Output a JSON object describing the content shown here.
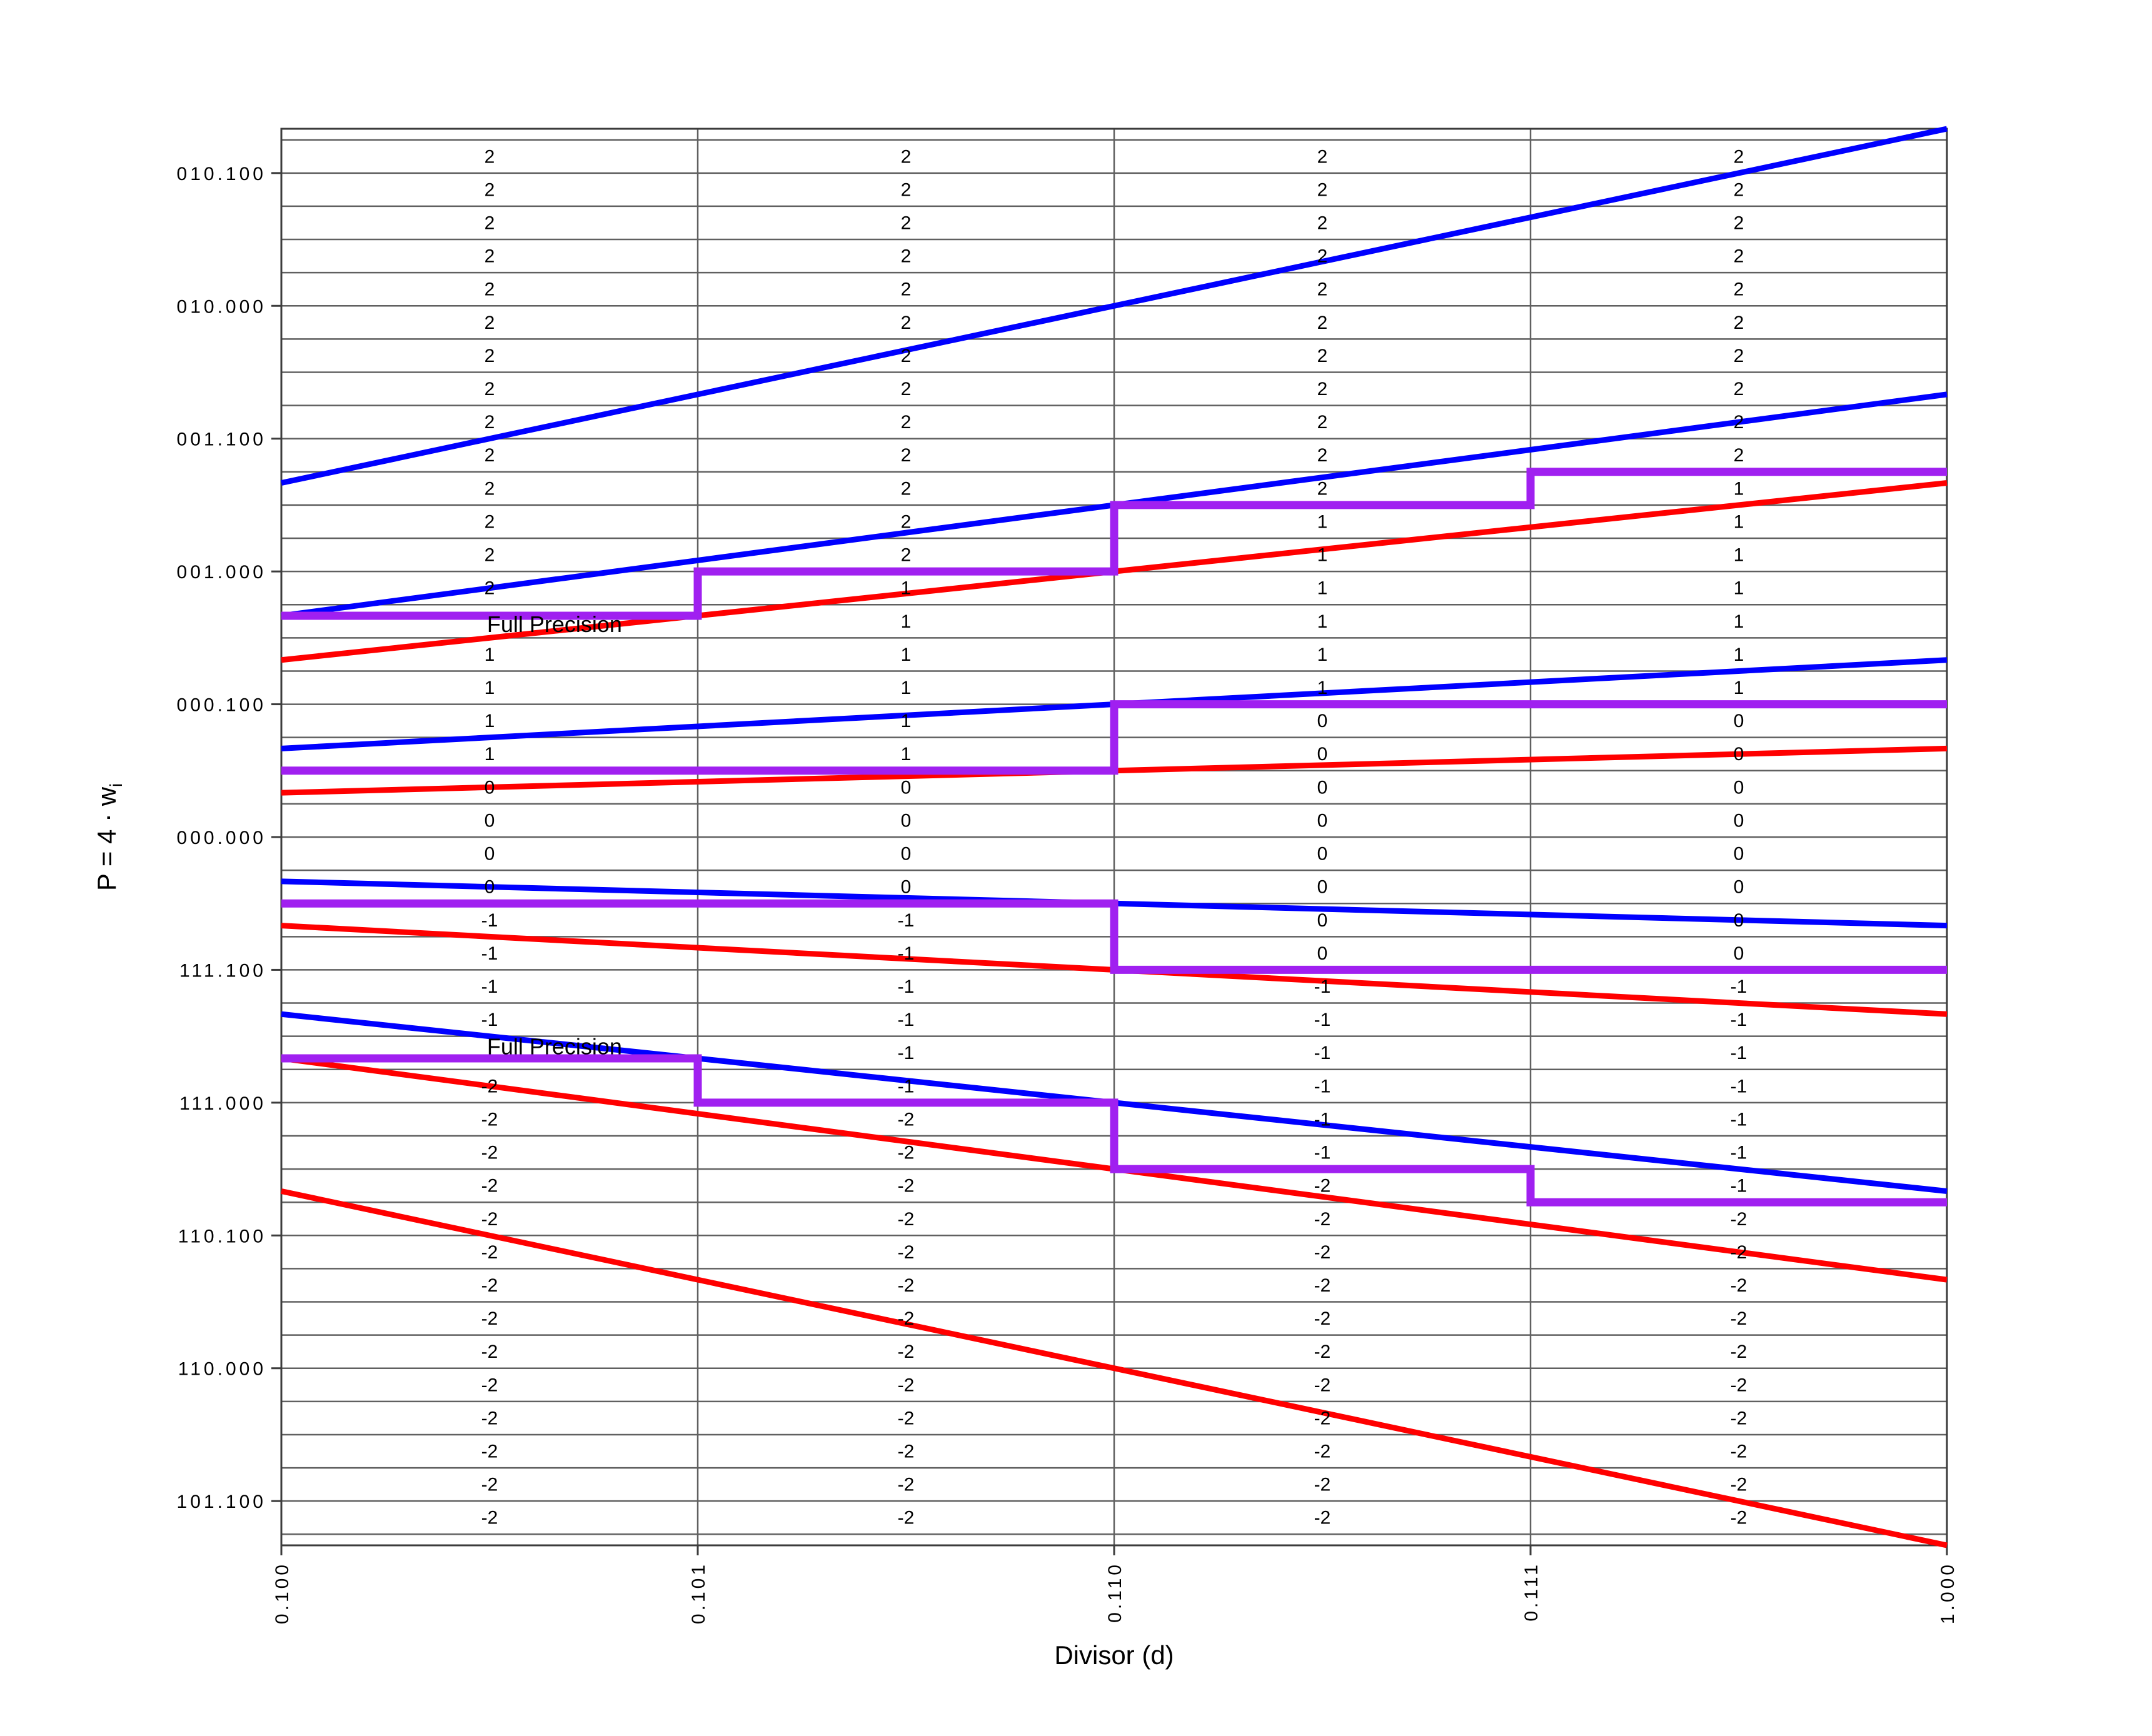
{
  "chart_data": {
    "type": "line",
    "title": "",
    "xlabel": "Divisor (d)",
    "ylabel": "P = 4 · w_i",
    "ylabel_main": "P = 4 · w",
    "ylabel_sub": "i",
    "xlim": [
      0.5,
      1.0
    ],
    "ylim": [
      -2.6667,
      2.6667
    ],
    "grid": {
      "y_min": -2.625,
      "y_max": 2.625,
      "y_step": 0.125,
      "x_lines": [
        0.625,
        0.75,
        0.875
      ]
    },
    "x_ticks": [
      {
        "value": 0.5,
        "label": "0.100"
      },
      {
        "value": 0.625,
        "label": "0.101"
      },
      {
        "value": 0.75,
        "label": "0.110"
      },
      {
        "value": 0.875,
        "label": "0.111"
      },
      {
        "value": 1.0,
        "label": "1.000"
      }
    ],
    "y_ticks": [
      {
        "value": 2.5,
        "label": "010.100"
      },
      {
        "value": 2.0,
        "label": "010.000"
      },
      {
        "value": 1.5,
        "label": "001.100"
      },
      {
        "value": 1.0,
        "label": "001.000"
      },
      {
        "value": 0.5,
        "label": "000.100"
      },
      {
        "value": 0.0,
        "label": "000.000"
      },
      {
        "value": -0.5,
        "label": "111.100"
      },
      {
        "value": -1.0,
        "label": "111.000"
      },
      {
        "value": -1.5,
        "label": "110.100"
      },
      {
        "value": -2.0,
        "label": "110.000"
      },
      {
        "value": -2.5,
        "label": "101.100"
      }
    ],
    "upper_bound_lines_blue": [
      {
        "digit": 2,
        "y_at_xmin": 1.3333,
        "y_at_xmax": 2.6667
      },
      {
        "digit": 1,
        "y_at_xmin": 0.8333,
        "y_at_xmax": 1.6667
      },
      {
        "digit": 0,
        "y_at_xmin": 0.3333,
        "y_at_xmax": 0.6667
      },
      {
        "digit": -1,
        "y_at_xmin": -0.1667,
        "y_at_xmax": -0.3333
      },
      {
        "digit": -2,
        "y_at_xmin": -0.6667,
        "y_at_xmax": -1.3333
      }
    ],
    "lower_bound_lines_red": [
      {
        "digit": 2,
        "y_at_xmin": 0.6667,
        "y_at_xmax": 1.3333
      },
      {
        "digit": 1,
        "y_at_xmin": 0.1667,
        "y_at_xmax": 0.3333
      },
      {
        "digit": 0,
        "y_at_xmin": -0.3333,
        "y_at_xmax": -0.6667
      },
      {
        "digit": -1,
        "y_at_xmin": -0.8333,
        "y_at_xmax": -1.6667
      },
      {
        "digit": -2,
        "y_at_xmin": -1.3333,
        "y_at_xmax": -2.6667
      }
    ],
    "staircase_boundaries_purple": [
      {
        "boundary": "2|1",
        "points": [
          [
            0.5,
            0.8333
          ],
          [
            0.625,
            0.8333
          ],
          [
            0.625,
            1.0
          ],
          [
            0.75,
            1.0
          ],
          [
            0.75,
            1.25
          ],
          [
            0.875,
            1.25
          ],
          [
            0.875,
            1.375
          ],
          [
            1.0,
            1.375
          ]
        ]
      },
      {
        "boundary": "1|0",
        "points": [
          [
            0.5,
            0.25
          ],
          [
            0.75,
            0.25
          ],
          [
            0.75,
            0.5
          ],
          [
            1.0,
            0.5
          ]
        ]
      },
      {
        "boundary": "0|-1",
        "points": [
          [
            0.5,
            -0.25
          ],
          [
            0.75,
            -0.25
          ],
          [
            0.75,
            -0.5
          ],
          [
            1.0,
            -0.5
          ]
        ]
      },
      {
        "boundary": "-1|-2",
        "points": [
          [
            0.5,
            -0.8333
          ],
          [
            0.625,
            -0.8333
          ],
          [
            0.625,
            -1.0
          ],
          [
            0.75,
            -1.0
          ],
          [
            0.75,
            -1.25
          ],
          [
            0.875,
            -1.25
          ],
          [
            0.875,
            -1.375
          ],
          [
            1.0,
            -1.375
          ]
        ]
      }
    ],
    "annotations": [
      {
        "text": "Full Precision",
        "x": 0.582,
        "y": 0.8
      },
      {
        "text": "Full Precision",
        "x": 0.582,
        "y": -0.79
      }
    ],
    "cell_digits": {
      "row_centers": [
        2.5625,
        2.4375,
        2.3125,
        2.1875,
        2.0625,
        1.9375,
        1.8125,
        1.6875,
        1.5625,
        1.4375,
        1.3125,
        1.1875,
        1.0625,
        0.9375,
        0.8125,
        0.6875,
        0.5625,
        0.4375,
        0.3125,
        0.1875,
        0.0625,
        -0.0625,
        -0.1875,
        -0.3125,
        -0.4375,
        -0.5625,
        -0.6875,
        -0.8125,
        -0.9375,
        -1.0625,
        -1.1875,
        -1.3125,
        -1.4375,
        -1.5625,
        -1.6875,
        -1.8125,
        -1.9375,
        -2.0625,
        -2.1875,
        -2.3125,
        -2.4375,
        -2.5625
      ],
      "columns": [
        {
          "d_center": 0.5625,
          "digits": [
            "2",
            "2",
            "2",
            "2",
            "2",
            "2",
            "2",
            "2",
            "2",
            "2",
            "2",
            "2",
            "2",
            "2",
            null,
            "1",
            "1",
            "1",
            "1",
            "0",
            "0",
            "0",
            "0",
            "-1",
            "-1",
            "-1",
            "-1",
            null,
            "-2",
            "-2",
            "-2",
            "-2",
            "-2",
            "-2",
            "-2",
            "-2",
            "-2",
            "-2",
            "-2",
            "-2",
            "-2",
            "-2"
          ]
        },
        {
          "d_center": 0.6875,
          "digits": [
            "2",
            "2",
            "2",
            "2",
            "2",
            "2",
            "2",
            "2",
            "2",
            "2",
            "2",
            "2",
            "2",
            "1",
            "1",
            "1",
            "1",
            "1",
            "1",
            "0",
            "0",
            "0",
            "0",
            "-1",
            "-1",
            "-1",
            "-1",
            "-1",
            "-1",
            "-2",
            "-2",
            "-2",
            "-2",
            "-2",
            "-2",
            "-2",
            "-2",
            "-2",
            "-2",
            "-2",
            "-2",
            "-2"
          ]
        },
        {
          "d_center": 0.8125,
          "digits": [
            "2",
            "2",
            "2",
            "2",
            "2",
            "2",
            "2",
            "2",
            "2",
            "2",
            "2",
            "1",
            "1",
            "1",
            "1",
            "1",
            "1",
            "0",
            "0",
            "0",
            "0",
            "0",
            "0",
            "0",
            "0",
            "-1",
            "-1",
            "-1",
            "-1",
            "-1",
            "-1",
            "-2",
            "-2",
            "-2",
            "-2",
            "-2",
            "-2",
            "-2",
            "-2",
            "-2",
            "-2",
            "-2"
          ]
        },
        {
          "d_center": 0.9375,
          "digits": [
            "2",
            "2",
            "2",
            "2",
            "2",
            "2",
            "2",
            "2",
            "2",
            "2",
            "1",
            "1",
            "1",
            "1",
            "1",
            "1",
            "1",
            "0",
            "0",
            "0",
            "0",
            "0",
            "0",
            "0",
            "0",
            "-1",
            "-1",
            "-1",
            "-1",
            "-1",
            "-1",
            "-1",
            "-2",
            "-2",
            "-2",
            "-2",
            "-2",
            "-2",
            "-2",
            "-2",
            "-2",
            "-2"
          ]
        }
      ]
    },
    "colors": {
      "upper_bound": "#0000ff",
      "lower_bound": "#ff0000",
      "staircase": "#a020f0",
      "grid": "#606060",
      "spine": "#3c3c3c",
      "text": "#000000",
      "background": "#ffffff"
    },
    "legend": null
  }
}
